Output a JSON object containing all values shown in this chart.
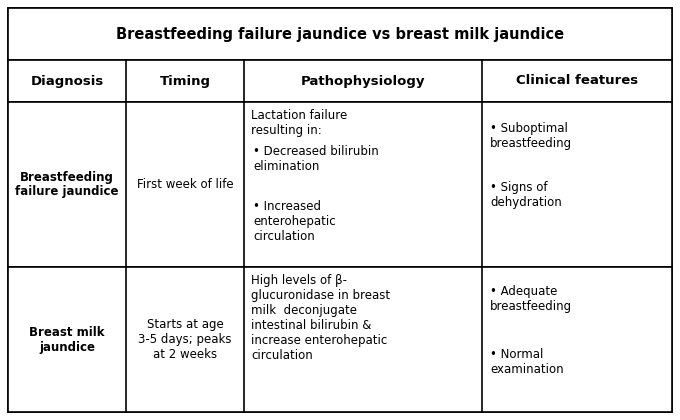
{
  "title": "Breastfeeding failure jaundice vs breast milk jaundice",
  "headers": [
    "Diagnosis",
    "Timing",
    "Pathophysiology",
    "Clinical features"
  ],
  "row1_diagnosis": "Breastfeeding\nfailure jaundice",
  "row1_timing": "First week of life",
  "row1_path_intro": "Lactation failure\nresulting in:",
  "row1_path_bullets": [
    "Decreased bilirubin\nelimination",
    "Increased\nenterohepatic\ncirculation"
  ],
  "row1_clin_bullets": [
    "Suboptimal\nbreastfeeding",
    "Signs of\ndehydration"
  ],
  "row2_diagnosis": "Breast milk\njaundice",
  "row2_timing": "Starts at age\n3-5 days; peaks\nat 2 weeks",
  "row2_path_text": "High levels of β-\nglucuronidase in breast\nmilk  deconjugate\nintestinal bilirubin &\nincrease enterohepatic\ncirculation",
  "row2_clin_bullets": [
    "Adequate\nbreastfeeding",
    "Normal\nexamination"
  ],
  "bg_color": "#ffffff",
  "line_color": "#000000",
  "title_fontsize": 10.5,
  "header_fontsize": 9.5,
  "cell_fontsize": 8.5
}
